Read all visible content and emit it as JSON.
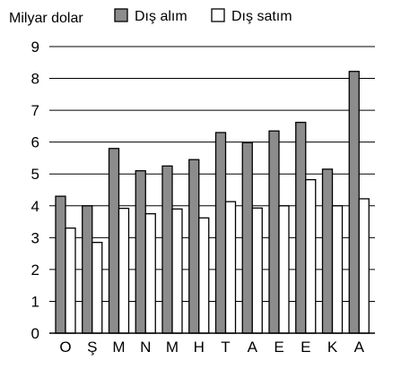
{
  "chart_data": {
    "type": "bar",
    "ylabel": "Milyar dolar",
    "ylim": [
      0,
      9
    ],
    "yticks": [
      0,
      1,
      2,
      3,
      4,
      5,
      6,
      7,
      8,
      9
    ],
    "grid": "horizontal",
    "legend_position": "top",
    "categories": [
      "O",
      "Ş",
      "M",
      "N",
      "M",
      "H",
      "T",
      "A",
      "E",
      "E",
      "K",
      "A"
    ],
    "series": [
      {
        "name": "Dış alım",
        "color": "#8c8c8c",
        "values": [
          4.3,
          4.0,
          5.8,
          5.1,
          5.25,
          5.45,
          6.3,
          5.98,
          6.35,
          6.62,
          5.15,
          8.22
        ]
      },
      {
        "name": "Dış satım",
        "color": "#ffffff",
        "values": [
          3.3,
          2.85,
          3.92,
          3.75,
          3.9,
          3.62,
          4.13,
          3.93,
          4.0,
          4.82,
          4.0,
          4.22
        ]
      }
    ]
  }
}
